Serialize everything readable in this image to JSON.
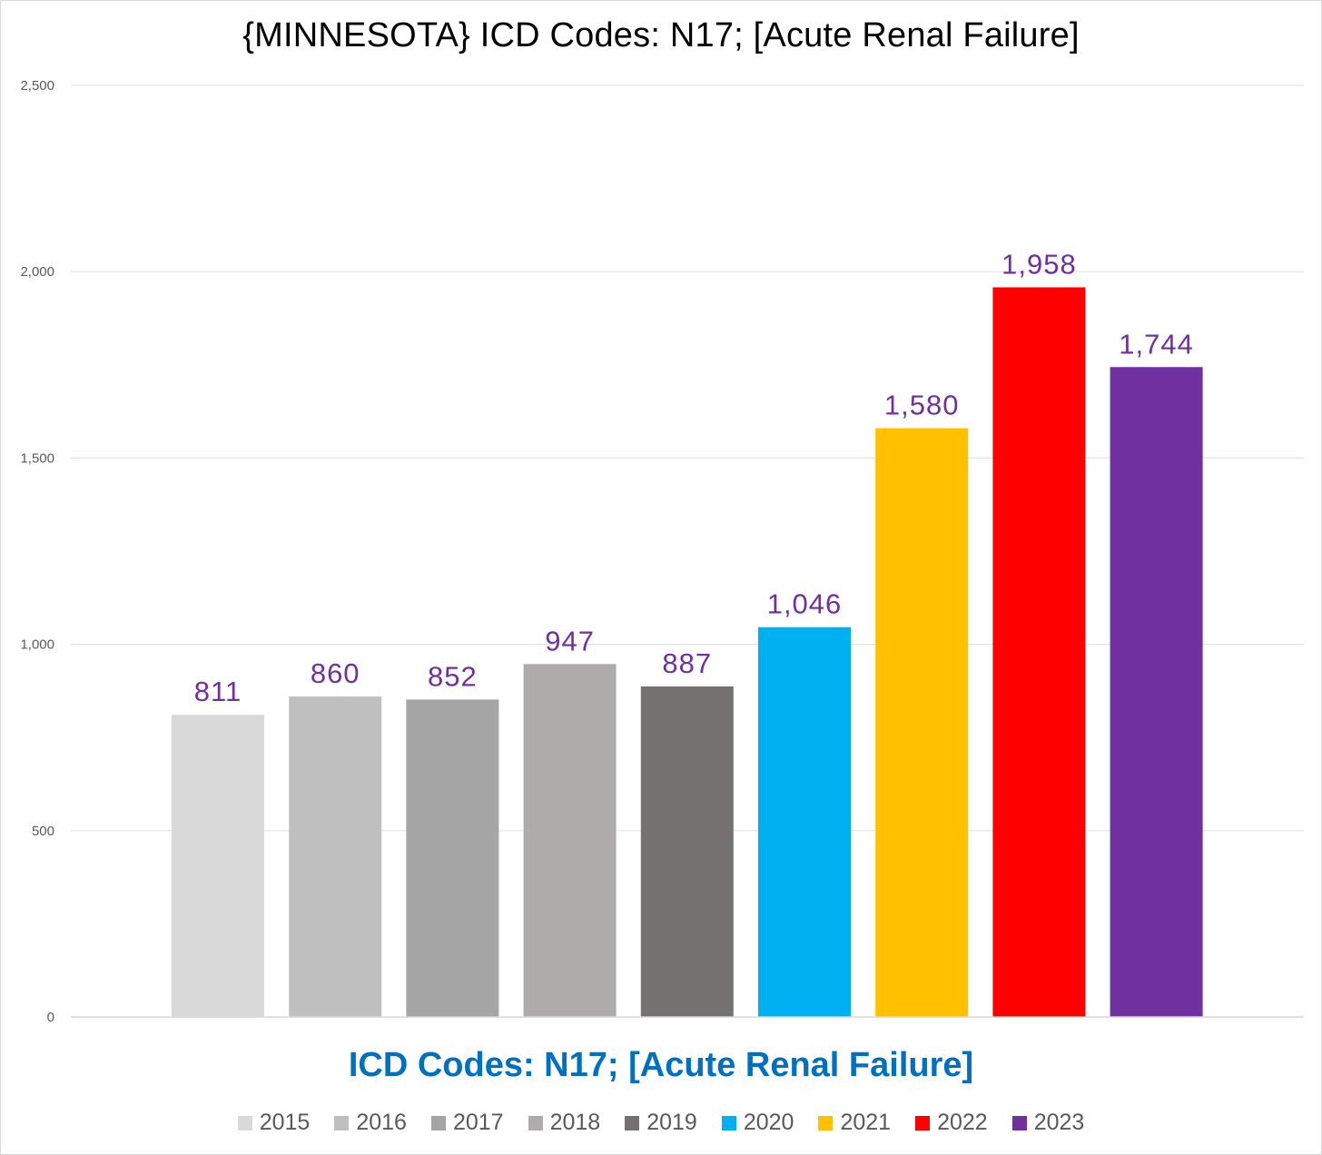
{
  "chart_data": {
    "type": "bar",
    "title": "{MINNESOTA}  ICD Codes: N17;  [Acute Renal Failure]",
    "xlabel": "ICD Codes: N17;  [Acute Renal Failure]",
    "ylabel": "",
    "ylim": [
      0,
      2500
    ],
    "yticks": [
      0,
      500,
      1000,
      1500,
      2000,
      2500
    ],
    "ytick_labels": [
      "0",
      "500",
      "1,000",
      "1,500",
      "2,000",
      "2,500"
    ],
    "grid": true,
    "legend_position": "bottom",
    "categories": [
      "2015",
      "2016",
      "2017",
      "2018",
      "2019",
      "2020",
      "2021",
      "2022",
      "2023"
    ],
    "values": [
      811,
      860,
      852,
      947,
      887,
      1046,
      1580,
      1958,
      1744
    ],
    "value_labels": [
      "811",
      "860",
      "852",
      "947",
      "887",
      "1,046",
      "1,580",
      "1,958",
      "1,744"
    ],
    "colors": [
      "#d9d9d9",
      "#bfbfbf",
      "#a5a5a5",
      "#afabab",
      "#767171",
      "#00b0f0",
      "#ffc000",
      "#ff0000",
      "#7030a0"
    ],
    "label_color": "#7030a0",
    "xlabel_color": "#0070c0"
  }
}
